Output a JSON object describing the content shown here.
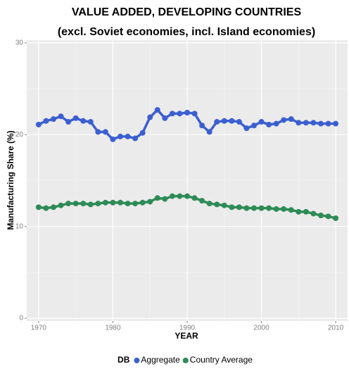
{
  "chart_data": {
    "type": "line",
    "title": "VALUE ADDED, DEVELOPING COUNTRIES",
    "subtitle": "(excl. Soviet economies, incl. Island economies)",
    "x_label": "YEAR",
    "y_label": "Manufacturing Share (%)",
    "legend_title": "DB",
    "legend_position": "bottom",
    "x": [
      1970,
      1971,
      1972,
      1973,
      1974,
      1975,
      1976,
      1977,
      1978,
      1979,
      1980,
      1981,
      1982,
      1983,
      1984,
      1985,
      1986,
      1987,
      1988,
      1989,
      1990,
      1991,
      1992,
      1993,
      1994,
      1995,
      1996,
      1997,
      1998,
      1999,
      2000,
      2001,
      2002,
      2003,
      2004,
      2005,
      2006,
      2007,
      2008,
      2009,
      2010
    ],
    "series": [
      {
        "name": "Aggregate",
        "color": "#3b5fcf",
        "values": [
          21.1,
          21.5,
          21.7,
          22.0,
          21.4,
          21.8,
          21.5,
          21.4,
          20.3,
          20.3,
          19.5,
          19.8,
          19.8,
          19.6,
          20.2,
          21.9,
          22.7,
          21.8,
          22.3,
          22.3,
          22.4,
          22.3,
          21.0,
          20.3,
          21.4,
          21.5,
          21.5,
          21.4,
          20.7,
          21.0,
          21.4,
          21.1,
          21.2,
          21.6,
          21.7,
          21.3,
          21.3,
          21.3,
          21.2,
          21.2,
          21.2
        ]
      },
      {
        "name": "Country Average",
        "color": "#2e8b57",
        "values": [
          12.1,
          12.0,
          12.1,
          12.3,
          12.5,
          12.5,
          12.5,
          12.4,
          12.5,
          12.6,
          12.6,
          12.6,
          12.5,
          12.5,
          12.6,
          12.7,
          13.1,
          13.0,
          13.3,
          13.3,
          13.3,
          13.1,
          12.8,
          12.5,
          12.4,
          12.3,
          12.1,
          12.1,
          12.0,
          12.0,
          12.0,
          12.0,
          11.9,
          11.9,
          11.8,
          11.6,
          11.6,
          11.4,
          11.2,
          11.1,
          10.9
        ]
      }
    ],
    "xlim": [
      1968.4,
      2011.6
    ],
    "xticks": [
      1970,
      1980,
      1990,
      2000,
      2010
    ],
    "ylim": [
      -0.3,
      30.3
    ],
    "yticks": [
      0,
      10,
      20,
      30
    ],
    "grid": true
  }
}
